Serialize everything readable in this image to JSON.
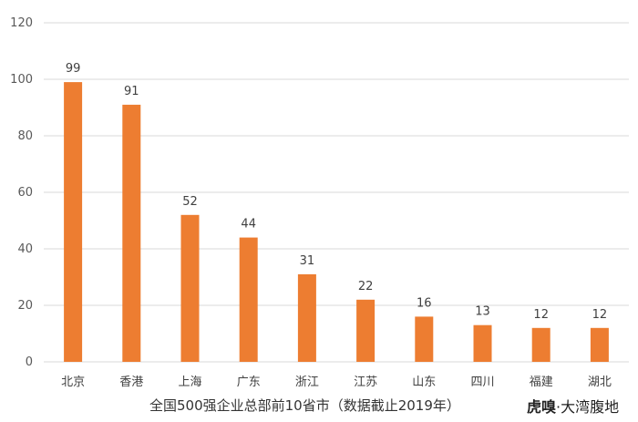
{
  "chart_data": {
    "type": "bar",
    "categories": [
      "北京",
      "香港",
      "上海",
      "广东",
      "浙江",
      "江苏",
      "山东",
      "四川",
      "福建",
      "湖北"
    ],
    "values": [
      99,
      91,
      52,
      44,
      31,
      22,
      16,
      13,
      12,
      12
    ],
    "data_labels": [
      "99",
      "91",
      "52",
      "44",
      "31",
      "22",
      "16",
      "13",
      "12",
      "12"
    ],
    "y_ticks": [
      "0",
      "20",
      "40",
      "60",
      "80",
      "100",
      "120"
    ],
    "ylim": [
      0,
      120
    ],
    "grid": "horizontal",
    "bar_color": "#ED7D31",
    "grid_color": "#D9D9D9"
  },
  "caption": "全国500强企业总部前10省市（数据截止2019年）",
  "watermark": {
    "brand": "虎嗅",
    "sep": "·",
    "text": "大湾腹地"
  }
}
